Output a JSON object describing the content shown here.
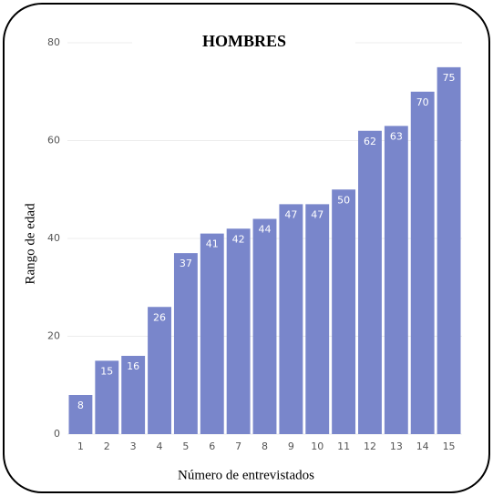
{
  "chart_data": {
    "type": "bar",
    "title": "HOMBRES",
    "x_label": "Número de entrevistados",
    "y_label": "Rango de edad",
    "categories": [
      "1",
      "2",
      "3",
      "4",
      "5",
      "6",
      "7",
      "8",
      "9",
      "10",
      "11",
      "12",
      "13",
      "14",
      "15"
    ],
    "values": [
      8,
      15,
      16,
      26,
      37,
      41,
      42,
      44,
      47,
      47,
      50,
      62,
      63,
      70,
      75
    ],
    "color": "#7986cb",
    "ylim": [
      0,
      80
    ],
    "yticks": [
      0,
      20,
      40,
      60,
      80
    ],
    "grid": true
  }
}
